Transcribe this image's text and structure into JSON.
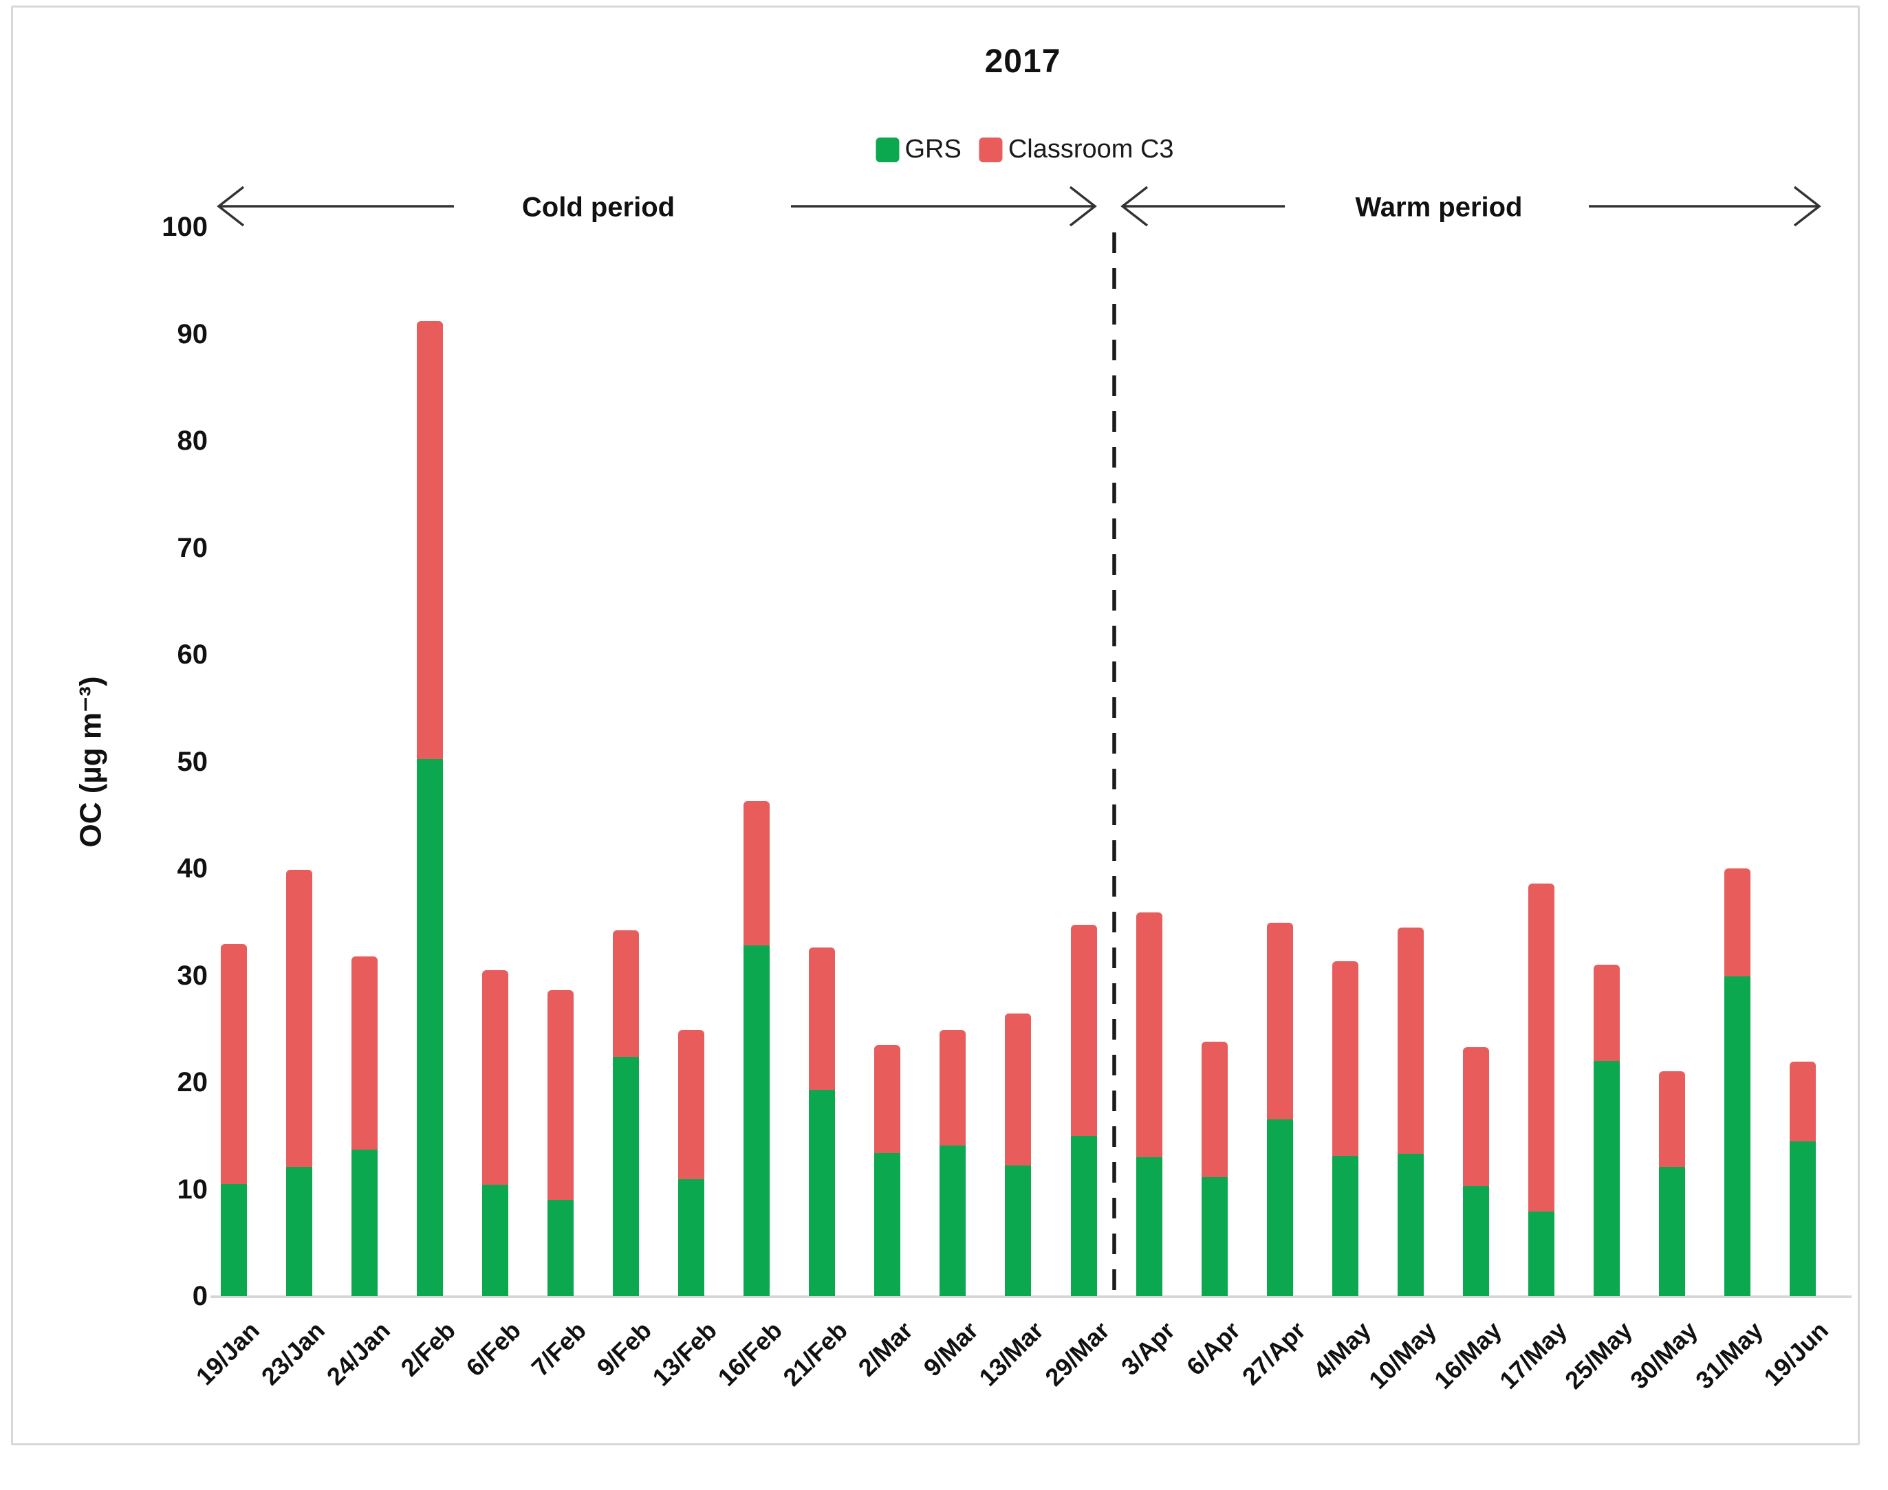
{
  "title": "2017",
  "legend": {
    "items": [
      {
        "label": "GRS",
        "color": "#0ca84f"
      },
      {
        "label": "Classroom C3",
        "color": "#e85c5c"
      }
    ]
  },
  "annotations": {
    "cold_period": "Cold period",
    "warm_period": "Warm period"
  },
  "y_axis": {
    "label": "OC (µg m⁻³)",
    "ticks": [
      0,
      10,
      20,
      30,
      40,
      50,
      60,
      70,
      80,
      90,
      100
    ]
  },
  "chart_data": {
    "type": "bar",
    "stacked": true,
    "title": "2017",
    "xlabel": "",
    "ylabel": "OC (µg m⁻³)",
    "ylim": [
      0,
      100
    ],
    "grid": false,
    "legend_position": "top",
    "categories": [
      "19/Jan",
      "23/Jan",
      "24/Jan",
      "2/Feb",
      "6/Feb",
      "7/Feb",
      "9/Feb",
      "13/Feb",
      "16/Feb",
      "21/Feb",
      "2/Mar",
      "9/Mar",
      "13/Mar",
      "29/Mar",
      "3/Apr",
      "6/Apr",
      "27/Apr",
      "4/May",
      "10/May",
      "16/May",
      "17/May",
      "25/May",
      "30/May",
      "31/May",
      "19/Jun"
    ],
    "series": [
      {
        "name": "GRS",
        "color": "#0ca84f",
        "values": [
          10.5,
          12.1,
          13.7,
          50.2,
          10.4,
          9.0,
          22.4,
          10.9,
          32.8,
          19.3,
          13.4,
          14.1,
          12.2,
          15.0,
          13.0,
          11.1,
          16.5,
          13.1,
          13.3,
          10.3,
          7.9,
          22.0,
          12.1,
          29.9,
          14.5
        ]
      },
      {
        "name": "Classroom C3",
        "color": "#e85c5c",
        "values": [
          22.4,
          27.8,
          18.1,
          41.0,
          20.1,
          19.6,
          11.8,
          14.0,
          13.5,
          13.3,
          10.1,
          10.8,
          14.2,
          19.7,
          22.9,
          12.7,
          18.4,
          18.2,
          21.2,
          13.0,
          30.7,
          9.0,
          8.9,
          10.1,
          7.4
        ]
      }
    ],
    "stacked_totals": [
      32.9,
      39.9,
      31.8,
      91.2,
      30.5,
      28.6,
      34.2,
      24.9,
      46.3,
      32.6,
      23.5,
      24.9,
      26.4,
      34.7,
      35.9,
      23.8,
      34.9,
      31.3,
      34.5,
      23.3,
      38.6,
      31.0,
      21.0,
      40.0,
      21.9
    ],
    "period_split": {
      "cold_categories_end": "29/Mar",
      "warm_categories_start": "3/Apr"
    }
  },
  "divider": {
    "style": "dashed",
    "color": "#1a1a1a"
  }
}
